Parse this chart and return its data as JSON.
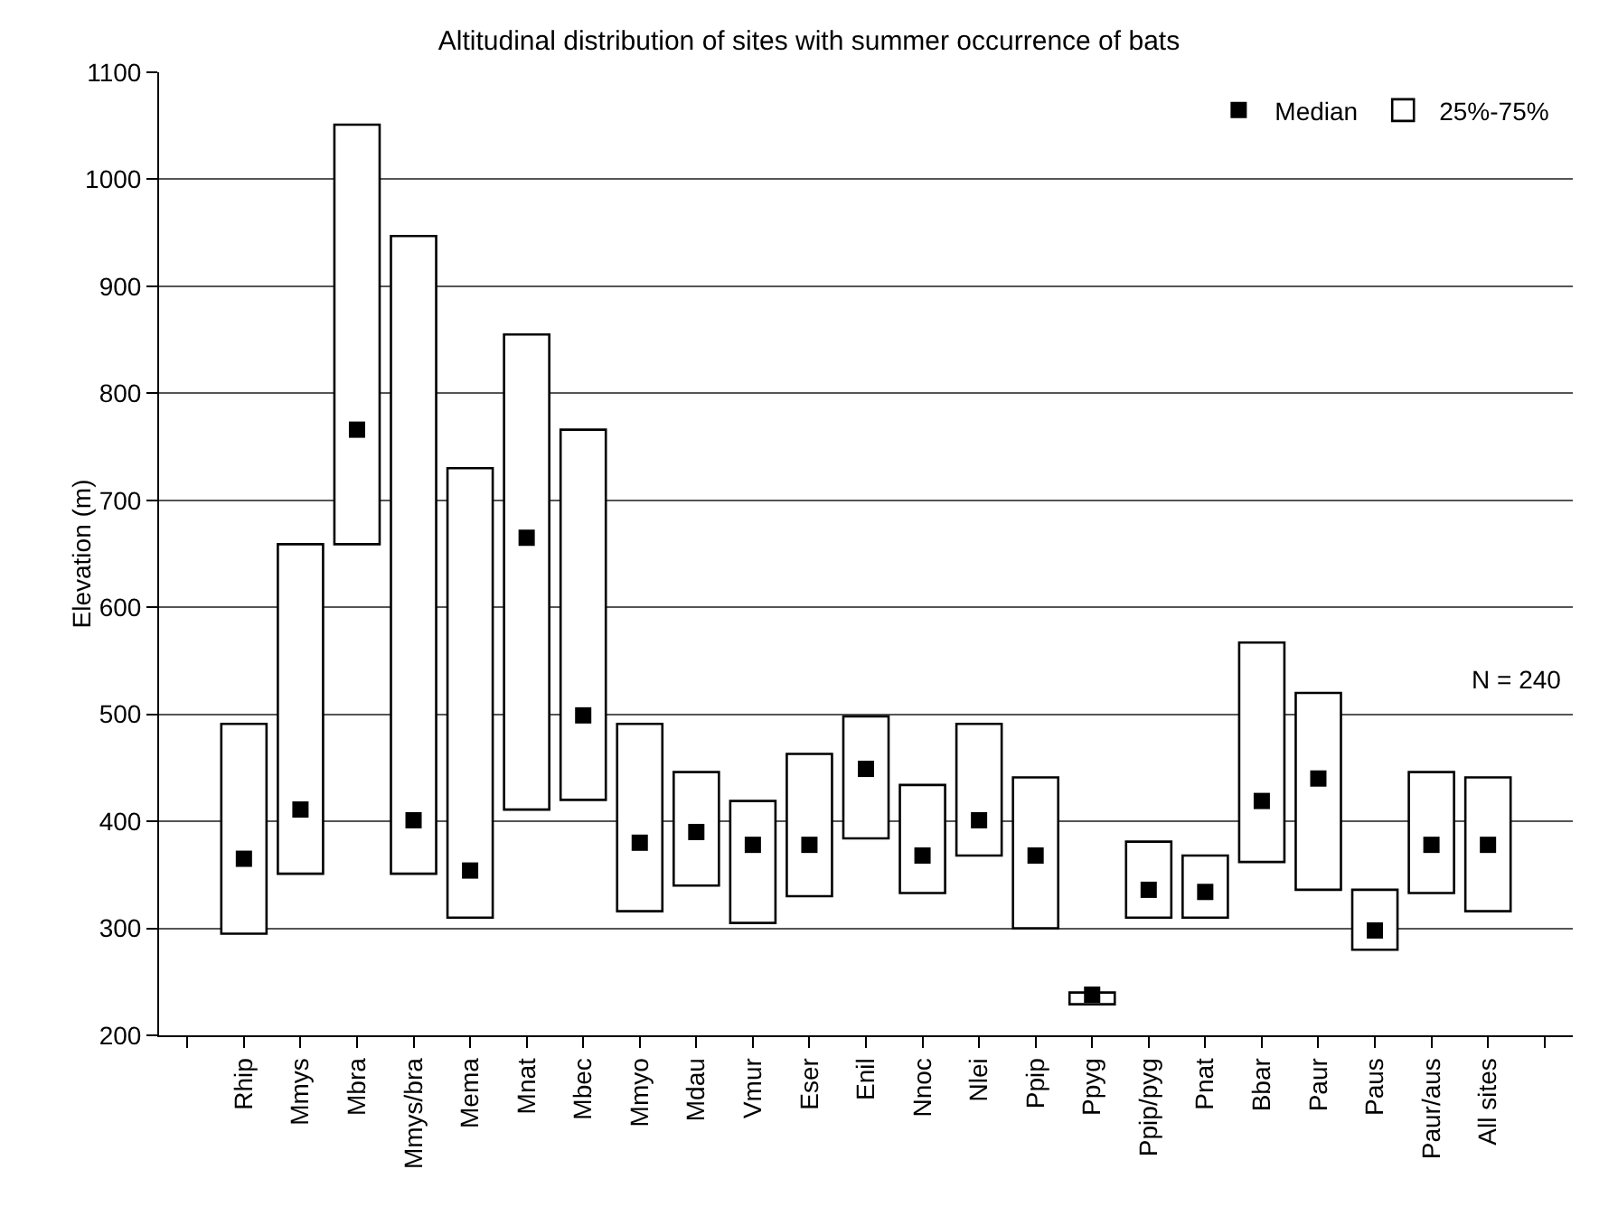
{
  "chart_data": {
    "type": "bar",
    "title": "Altitudinal distribution of sites with summer occurrence of bats",
    "ylabel": "Elevation (m)",
    "categories": [
      null,
      "Rhip",
      "Mmys",
      "Mbra",
      "Mmys/bra",
      "Mema",
      "Mnat",
      "Mbec",
      "Mmyo",
      "Mdau",
      "Vmur",
      "Eser",
      "Enil",
      "Nnoc",
      "Nlei",
      "Ppip",
      "Ppyg",
      "Ppip/pyg",
      "Pnat",
      "Bbar",
      "Paur",
      "Paus",
      "Paur/aus",
      "All sites",
      null
    ],
    "series": [
      {
        "name": "Median",
        "type": "scatter",
        "marker": "square",
        "color": "#000000",
        "values": [
          null,
          365,
          411,
          766,
          401,
          354,
          665,
          499,
          380,
          390,
          378,
          378,
          449,
          368,
          401,
          368,
          238,
          336,
          334,
          419,
          440,
          298,
          378,
          378,
          null
        ]
      },
      {
        "name": "25%-75%",
        "color": "#ffffff",
        "base": [
          null,
          295,
          351,
          659,
          351,
          310,
          411,
          420,
          316,
          340,
          305,
          330,
          384,
          333,
          368,
          300,
          229,
          310,
          310,
          362,
          336,
          280,
          333,
          316,
          null
        ],
        "values": [
          null,
          196,
          308,
          392,
          596,
          420,
          444,
          346,
          175,
          106,
          114,
          133,
          114,
          101,
          123,
          141,
          11,
          71,
          58,
          205,
          184,
          56,
          113,
          125,
          null
        ]
      }
    ],
    "ylim": [
      200,
      1100
    ],
    "yticks": [
      200,
      300,
      400,
      500,
      600,
      700,
      800,
      900,
      1000,
      1100
    ],
    "grid": "y",
    "legend": "top right",
    "annotations": [
      "N = 240"
    ]
  }
}
